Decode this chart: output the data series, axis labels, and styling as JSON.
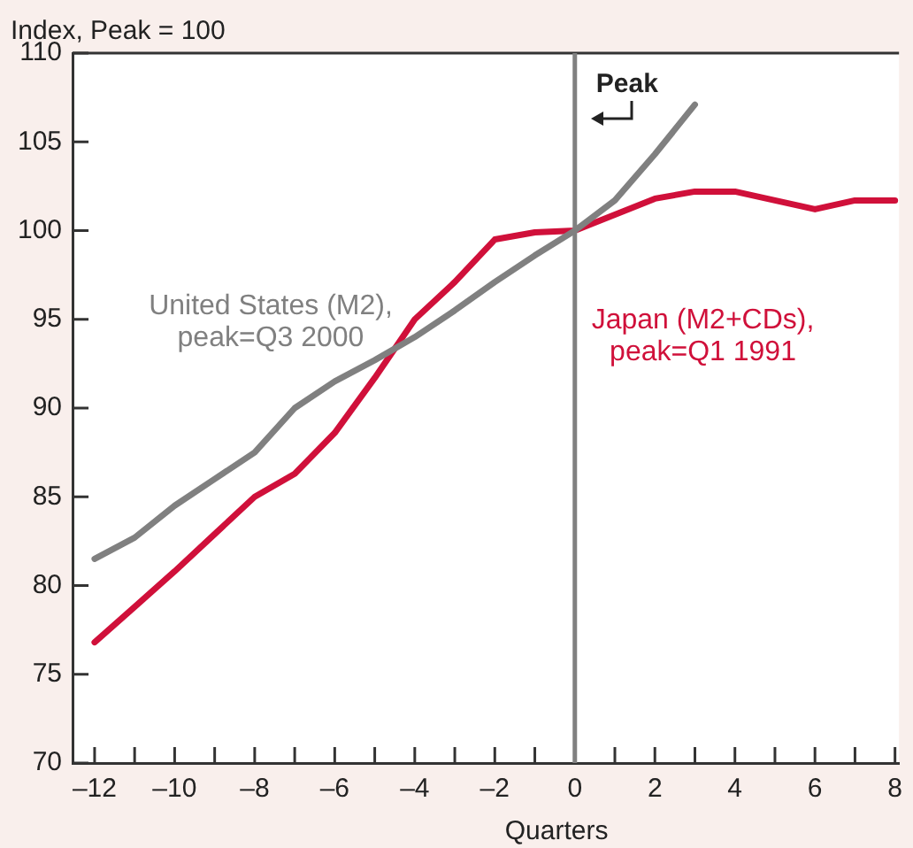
{
  "chart_data": {
    "type": "line",
    "ylabel": "Index, Peak = 100",
    "xlabel": "Quarters",
    "xlim": [
      -12.55,
      8.1
    ],
    "xticks": [
      {
        "value": -12,
        "label": "–12"
      },
      {
        "value": -11,
        "label": null
      },
      {
        "value": -10,
        "label": "–10"
      },
      {
        "value": -9,
        "label": null
      },
      {
        "value": -8,
        "label": "–8"
      },
      {
        "value": -7,
        "label": null
      },
      {
        "value": -6,
        "label": "–6"
      },
      {
        "value": -5,
        "label": null
      },
      {
        "value": -4,
        "label": "–4"
      },
      {
        "value": -3,
        "label": null
      },
      {
        "value": -2,
        "label": "–2"
      },
      {
        "value": -1,
        "label": null
      },
      0,
      {
        "value": 1,
        "label": null
      },
      2,
      {
        "value": 3,
        "label": null
      },
      4,
      {
        "value": 5,
        "label": null
      },
      6,
      {
        "value": 7,
        "label": null
      },
      8
    ],
    "ylim": [
      70,
      110
    ],
    "yticks": [
      70,
      75,
      80,
      85,
      90,
      95,
      100,
      105,
      110
    ],
    "grid": false,
    "legend": false,
    "marker": "none",
    "line_style": "solid",
    "ref_lines": [
      {
        "axis": "x",
        "value": 0,
        "label": "Peak",
        "color": "#808080"
      }
    ],
    "series": [
      {
        "name": "United States (M2), peak=Q3 2000",
        "color": "#808080",
        "x": [
          -12,
          -11,
          -10,
          -9,
          -8,
          -7,
          -6,
          -5,
          -4,
          -3,
          -2,
          -1,
          0,
          1,
          2,
          3
        ],
        "values": [
          81.5,
          82.7,
          84.5,
          86.0,
          87.5,
          90.0,
          91.5,
          92.7,
          94.0,
          95.5,
          97.1,
          98.6,
          100,
          101.7,
          104.3,
          107.1
        ]
      },
      {
        "name": "Japan (M2+CDs), peak=Q1 1991",
        "color": "#d0103a",
        "x": [
          -12,
          -11,
          -10,
          -9,
          -8,
          -7,
          -6,
          -5,
          -4,
          -3,
          -2,
          -1,
          0,
          1,
          2,
          3,
          4,
          5,
          6,
          7,
          8
        ],
        "values": [
          76.8,
          78.8,
          80.8,
          82.9,
          85.0,
          86.3,
          88.6,
          91.7,
          95.0,
          97.1,
          99.5,
          99.9,
          100,
          100.9,
          101.8,
          102.2,
          102.2,
          101.7,
          101.2,
          101.7,
          101.7
        ]
      }
    ]
  }
}
